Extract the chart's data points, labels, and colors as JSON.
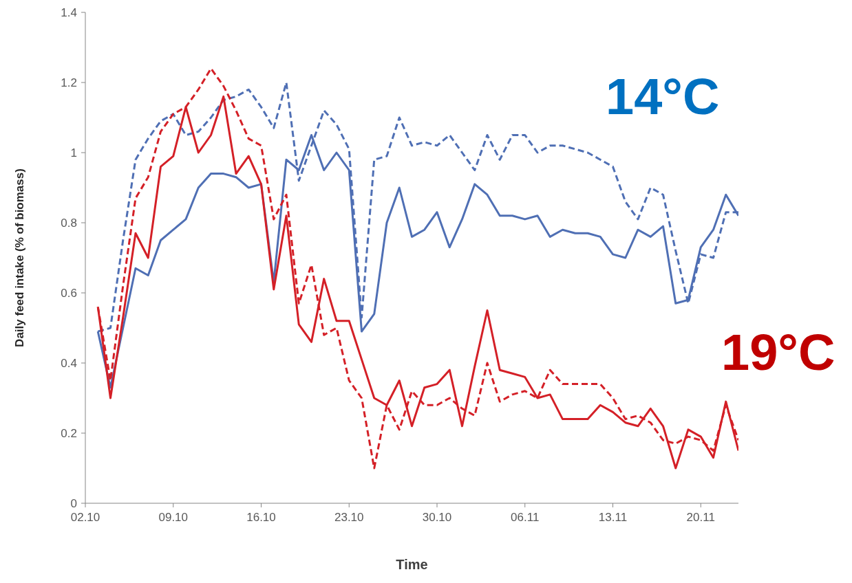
{
  "chart_data": {
    "type": "line",
    "xlabel": "Time",
    "ylabel": "Daily feed intake (% of biomass)",
    "x": [
      "--10-03",
      "--10-04",
      "--10-05",
      "--10-06",
      "--10-07",
      "--10-08",
      "--10-09",
      "--10-10",
      "--10-11",
      "--10-12",
      "--10-13",
      "--10-14",
      "--10-15",
      "--10-16",
      "--10-17",
      "--10-18",
      "--10-19",
      "--10-20",
      "--10-21",
      "--10-22",
      "--10-23",
      "--10-24",
      "--10-25",
      "--10-26",
      "--10-27",
      "--10-28",
      "--10-29",
      "--10-30",
      "--10-31",
      "--11-01",
      "--11-02",
      "--11-03",
      "--11-04",
      "--11-05",
      "--11-06",
      "--11-07",
      "--11-08",
      "--11-09",
      "--11-10",
      "--11-11",
      "--11-12",
      "--11-13",
      "--11-14",
      "--11-15",
      "--11-16",
      "--11-17",
      "--11-18",
      "--11-19",
      "--11-20",
      "--11-21",
      "--11-22",
      "--11-23"
    ],
    "series": [
      {
        "color": "#4f6fb4",
        "line_style": "solid",
        "values": [
          0.49,
          0.33,
          0.5,
          0.67,
          0.65,
          0.75,
          0.78,
          0.81,
          0.9,
          0.94,
          0.94,
          0.93,
          0.9,
          0.91,
          0.63,
          0.98,
          0.95,
          1.05,
          0.95,
          1.0,
          0.95,
          0.49,
          0.54,
          0.8,
          0.9,
          0.76,
          0.78,
          0.83,
          0.73,
          0.81,
          0.91,
          0.88,
          0.82,
          0.82,
          0.81,
          0.82,
          0.76,
          0.78,
          0.77,
          0.77,
          0.76,
          0.71,
          0.7,
          0.78,
          0.76,
          0.79,
          0.57,
          0.58,
          0.73,
          0.78,
          0.88,
          0.82
        ]
      },
      {
        "color": "#4f6fb4",
        "line_style": "dashed",
        "values": [
          0.49,
          0.5,
          0.75,
          0.98,
          1.04,
          1.09,
          1.11,
          1.05,
          1.06,
          1.1,
          1.15,
          1.16,
          1.18,
          1.13,
          1.07,
          1.2,
          0.92,
          1.02,
          1.12,
          1.08,
          1.01,
          0.53,
          0.98,
          0.99,
          1.1,
          1.02,
          1.03,
          1.02,
          1.05,
          1.0,
          0.95,
          1.05,
          0.98,
          1.05,
          1.05,
          1.0,
          1.02,
          1.02,
          1.01,
          1.0,
          0.98,
          0.96,
          0.86,
          0.81,
          0.9,
          0.88,
          0.72,
          0.57,
          0.71,
          0.7,
          0.83,
          0.83
        ]
      },
      {
        "color": "#d42027",
        "line_style": "solid",
        "values": [
          0.56,
          0.3,
          0.53,
          0.77,
          0.7,
          0.96,
          0.99,
          1.13,
          1.0,
          1.05,
          1.16,
          0.94,
          0.99,
          0.91,
          0.61,
          0.82,
          0.51,
          0.46,
          0.64,
          0.52,
          0.52,
          0.41,
          0.3,
          0.28,
          0.35,
          0.22,
          0.33,
          0.34,
          0.38,
          0.22,
          0.39,
          0.55,
          0.38,
          0.37,
          0.36,
          0.3,
          0.31,
          0.24,
          0.24,
          0.24,
          0.28,
          0.26,
          0.23,
          0.22,
          0.27,
          0.22,
          0.1,
          0.21,
          0.19,
          0.13,
          0.29,
          0.15
        ]
      },
      {
        "color": "#d42027",
        "line_style": "dashed",
        "values": [
          0.56,
          0.35,
          0.62,
          0.87,
          0.93,
          1.06,
          1.11,
          1.13,
          1.18,
          1.24,
          1.19,
          1.12,
          1.04,
          1.02,
          0.81,
          0.88,
          0.57,
          0.68,
          0.48,
          0.5,
          0.35,
          0.3,
          0.1,
          0.28,
          0.21,
          0.32,
          0.28,
          0.28,
          0.3,
          0.27,
          0.25,
          0.4,
          0.29,
          0.31,
          0.32,
          0.3,
          0.38,
          0.34,
          0.34,
          0.34,
          0.34,
          0.3,
          0.24,
          0.25,
          0.23,
          0.18,
          0.17,
          0.19,
          0.18,
          0.15,
          0.28,
          0.18
        ]
      }
    ],
    "xlim": [
      "--10-02",
      "--11-23"
    ],
    "xticks": [
      {
        "value": "--10-02",
        "label": "02.10"
      },
      {
        "value": "--10-09",
        "label": "09.10"
      },
      {
        "value": "--10-16",
        "label": "16.10"
      },
      {
        "value": "--10-23",
        "label": "23.10"
      },
      {
        "value": "--10-30",
        "label": "30.10"
      },
      {
        "value": "--11-06",
        "label": "06.11"
      },
      {
        "value": "--11-13",
        "label": "13.11"
      },
      {
        "value": "--11-20",
        "label": "20.11"
      }
    ],
    "ylim": [
      0,
      1.4
    ],
    "yticks": [
      0,
      0.2,
      0.4,
      0.6,
      0.8,
      1,
      1.2,
      1.4
    ],
    "annotations": [
      "14°C",
      "19°C"
    ],
    "legend": false,
    "grid": false
  }
}
